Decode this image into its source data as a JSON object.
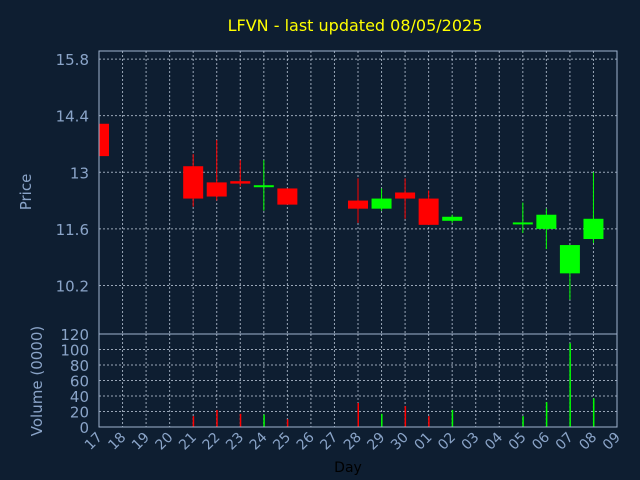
{
  "chart_data": [
    {
      "type": "candlestick",
      "title": "LFVN - last updated 08/05/2025",
      "ylabel": "Price",
      "ylim": [
        9.0,
        16.0
      ],
      "yticks": [
        "15.8",
        "14.4",
        "13",
        "11.6",
        "10.2"
      ],
      "ytick_values": [
        15.8,
        14.4,
        13.0,
        11.6,
        10.2
      ],
      "grid": true,
      "colors": {
        "up": "#00ff00",
        "down": "#ff0000",
        "title": "#ffff00",
        "axis_text": "#8aa4c8",
        "frame": "#a0b4d0",
        "background": "#0e1e31"
      },
      "candles": [
        {
          "day": "17",
          "open": 14.2,
          "high": 14.2,
          "low": 13.4,
          "close": 13.4
        },
        {
          "day": "21",
          "open": 13.15,
          "high": 13.45,
          "low": 12.15,
          "close": 12.35
        },
        {
          "day": "22",
          "open": 12.75,
          "high": 13.8,
          "low": 12.3,
          "close": 12.4
        },
        {
          "day": "23",
          "open": 12.78,
          "high": 13.3,
          "low": 12.65,
          "close": 12.72
        },
        {
          "day": "24",
          "open": 12.65,
          "high": 13.3,
          "low": 12.05,
          "close": 12.68
        },
        {
          "day": "25",
          "open": 12.6,
          "high": 12.6,
          "low": 12.2,
          "close": 12.2
        },
        {
          "day": "28",
          "open": 12.3,
          "high": 12.85,
          "low": 11.75,
          "close": 12.1
        },
        {
          "day": "29",
          "open": 12.1,
          "high": 12.6,
          "low": 12.05,
          "close": 12.35
        },
        {
          "day": "30",
          "open": 12.5,
          "high": 12.85,
          "low": 11.85,
          "close": 12.35
        },
        {
          "day": "01",
          "open": 12.35,
          "high": 12.55,
          "low": 11.7,
          "close": 11.7
        },
        {
          "day": "02",
          "open": 11.8,
          "high": 11.95,
          "low": 11.75,
          "close": 11.9
        },
        {
          "day": "05",
          "open": 11.75,
          "high": 12.25,
          "low": 11.5,
          "close": 11.76
        },
        {
          "day": "06",
          "open": 11.6,
          "high": 12.1,
          "low": 11.1,
          "close": 11.95
        },
        {
          "day": "07",
          "open": 10.5,
          "high": 11.15,
          "low": 9.85,
          "close": 11.2
        },
        {
          "day": "08",
          "open": 11.35,
          "high": 13.0,
          "low": 11.25,
          "close": 11.85
        }
      ]
    },
    {
      "type": "bar",
      "xlabel": "Day",
      "ylabel": "Volume (0000)",
      "ylim": [
        0,
        120
      ],
      "yticks": [
        "120",
        "100",
        "80",
        "60",
        "40",
        "20",
        "0"
      ],
      "ytick_values": [
        120,
        100,
        80,
        60,
        40,
        20,
        0
      ],
      "categories": [
        "17",
        "18",
        "19",
        "20",
        "21",
        "22",
        "23",
        "24",
        "25",
        "26",
        "27",
        "28",
        "29",
        "30",
        "01",
        "02",
        "03",
        "04",
        "05",
        "06",
        "07",
        "08",
        "09"
      ],
      "values": [
        {
          "day": "21",
          "value": 14,
          "color": "#ff0000"
        },
        {
          "day": "22",
          "value": 22,
          "color": "#ff0000"
        },
        {
          "day": "23",
          "value": 17,
          "color": "#ff0000"
        },
        {
          "day": "24",
          "value": 16,
          "color": "#00ff00"
        },
        {
          "day": "25",
          "value": 10,
          "color": "#ff0000"
        },
        {
          "day": "28",
          "value": 31,
          "color": "#ff0000"
        },
        {
          "day": "29",
          "value": 17,
          "color": "#00ff00"
        },
        {
          "day": "30",
          "value": 27,
          "color": "#ff0000"
        },
        {
          "day": "01",
          "value": 14,
          "color": "#ff0000"
        },
        {
          "day": "02",
          "value": 22,
          "color": "#00ff00"
        },
        {
          "day": "05",
          "value": 14,
          "color": "#00ff00"
        },
        {
          "day": "06",
          "value": 32,
          "color": "#00ff00"
        },
        {
          "day": "07",
          "value": 108,
          "color": "#00ff00"
        },
        {
          "day": "08",
          "value": 37,
          "color": "#00ff00"
        }
      ]
    }
  ]
}
